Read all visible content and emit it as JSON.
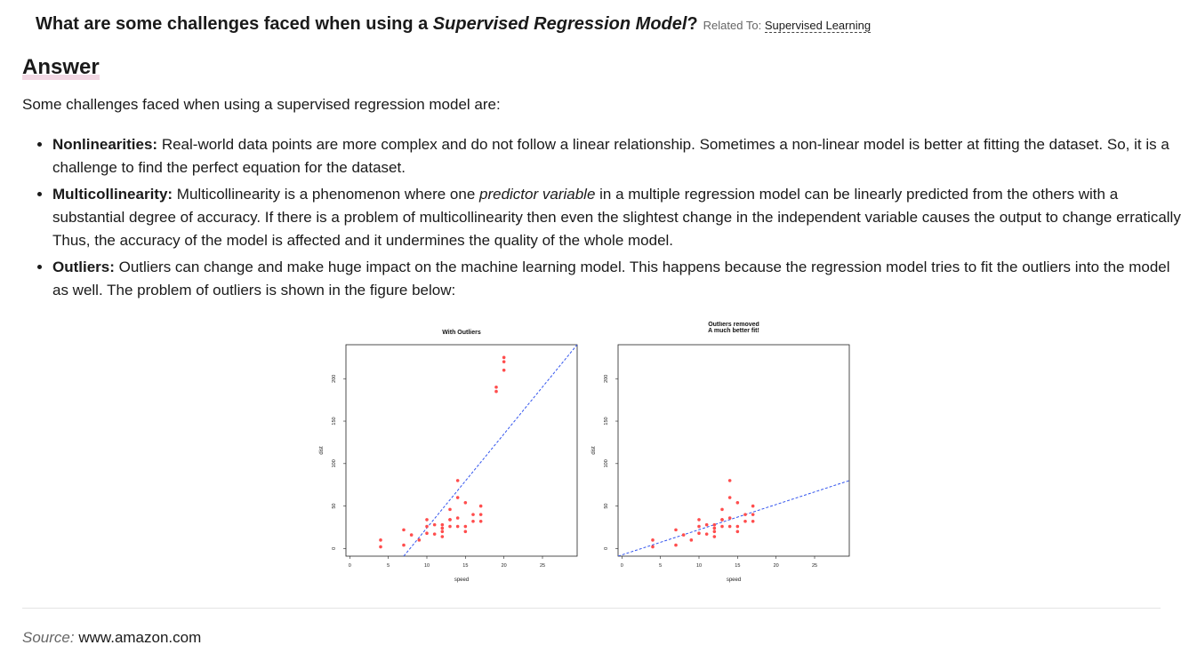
{
  "question": {
    "prefix": "What are some challenges faced when using a ",
    "emphasis": "Supervised Regression Model",
    "suffix": "?",
    "related_label": "Related To:",
    "related_link": "Supervised Learning"
  },
  "answer_heading": "Answer",
  "intro": "Some challenges faced when using a supervised regression model are:",
  "challenges": [
    {
      "term": "Nonlinearities:",
      "text": " Real-world data points are more complex and do not follow a linear relationship. Sometimes a non-linear model is better at fitting the dataset. So, it is a challenge to find the perfect equation for the dataset."
    },
    {
      "term": "Multicollinearity:",
      "text_before": " Multicollinearity is a phenomenon where one ",
      "emphasis": "predictor variable",
      "text_after": " in a multiple regression model can be linearly predicted from the others with a substantial degree of accuracy. If there is a problem of multicollinearity then even the slightest change in the independent variable causes the output to change erratically. Thus, the accuracy of the model is affected and it undermines the quality of the whole model."
    },
    {
      "term": "Outliers:",
      "text": " Outliers can change and make huge impact on the machine learning model. This happens because the regression model tries to fit the outliers into the model as well. The problem of outliers is shown in the figure below:"
    }
  ],
  "source": {
    "label": "Source:",
    "value": "www.amazon.com"
  },
  "chart_data": [
    {
      "type": "scatter",
      "title": "With Outliers",
      "xlabel": "speed",
      "ylabel": "dist",
      "xlim": [
        -0.5,
        29.5
      ],
      "ylim": [
        -9,
        240
      ],
      "xticks": [
        0,
        5,
        10,
        15,
        20,
        25
      ],
      "yticks": [
        0,
        50,
        100,
        150,
        200
      ],
      "point_color": "#ff4d4d",
      "line_color": "#3355ee",
      "x": [
        4,
        4,
        7,
        7,
        8,
        9,
        10,
        10,
        10,
        11,
        11,
        12,
        12,
        12,
        12,
        13,
        13,
        13,
        13,
        14,
        14,
        14,
        14,
        15,
        15,
        15,
        16,
        16,
        17,
        17,
        17,
        19,
        19,
        20,
        20,
        20
      ],
      "y": [
        2,
        10,
        4,
        22,
        16,
        10,
        18,
        26,
        34,
        17,
        28,
        14,
        20,
        24,
        28,
        26,
        34,
        34,
        46,
        26,
        36,
        60,
        80,
        20,
        26,
        54,
        32,
        40,
        32,
        40,
        50,
        185,
        190,
        210,
        220,
        225
      ],
      "fit": {
        "x": [
          7.0,
          29.5
        ],
        "y": [
          -9,
          240
        ]
      }
    },
    {
      "type": "scatter",
      "title": "Outliers removed\nA much better fit!",
      "xlabel": "speed",
      "ylabel": "dist",
      "xlim": [
        -0.5,
        29.5
      ],
      "ylim": [
        -9,
        240
      ],
      "xticks": [
        0,
        5,
        10,
        15,
        20,
        25
      ],
      "yticks": [
        0,
        50,
        100,
        150,
        200
      ],
      "point_color": "#ff4d4d",
      "line_color": "#3355ee",
      "x": [
        4,
        4,
        7,
        7,
        8,
        9,
        10,
        10,
        10,
        11,
        11,
        12,
        12,
        12,
        12,
        13,
        13,
        13,
        13,
        14,
        14,
        14,
        14,
        15,
        15,
        15,
        16,
        16,
        17,
        17,
        17
      ],
      "y": [
        2,
        10,
        4,
        22,
        16,
        10,
        18,
        26,
        34,
        17,
        28,
        14,
        20,
        24,
        28,
        26,
        34,
        34,
        46,
        26,
        36,
        60,
        80,
        20,
        26,
        54,
        32,
        40,
        32,
        40,
        50
      ],
      "fit": {
        "x": [
          -0.5,
          29.5
        ],
        "y": [
          -9,
          80
        ]
      }
    }
  ]
}
